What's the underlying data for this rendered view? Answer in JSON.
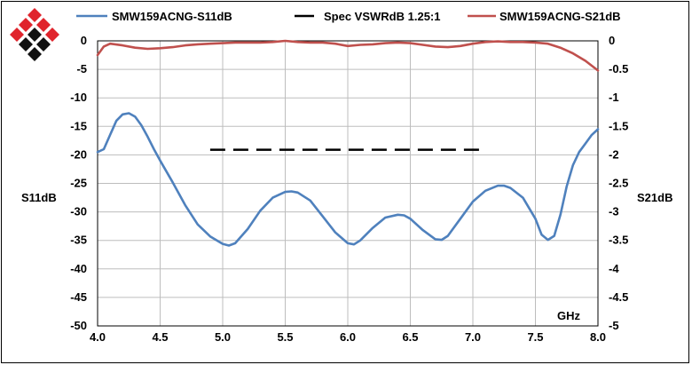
{
  "chart_data": {
    "type": "line",
    "xlabel": "GHz",
    "ylabel_left": "S11dB",
    "ylabel_right": "S21dB",
    "xlim": [
      4.0,
      8.0
    ],
    "ylim_left": [
      -50,
      0
    ],
    "ylim_right": [
      -5,
      0
    ],
    "x_ticks": [
      "4.0",
      "4.5",
      "5.0",
      "5.5",
      "6.0",
      "6.5",
      "7.0",
      "7.5",
      "8.0"
    ],
    "y_left_ticks": [
      "0",
      "-5",
      "-10",
      "-15",
      "-20",
      "-25",
      "-30",
      "-35",
      "-40",
      "-45",
      "-50"
    ],
    "y_right_ticks": [
      "0",
      "-0.5",
      "-1",
      "-1.5",
      "-2",
      "-2.5",
      "-3",
      "-3.5",
      "-4",
      "-4.5",
      "-5"
    ],
    "grid": true,
    "legend_position": "top",
    "series": [
      {
        "name": "SMW159ACNG-S11dB",
        "axis": "left",
        "color": "#4f81bd",
        "style": "solid",
        "points": [
          [
            4.0,
            -19.5
          ],
          [
            4.05,
            -19.0
          ],
          [
            4.1,
            -16.5
          ],
          [
            4.15,
            -14.0
          ],
          [
            4.2,
            -12.9
          ],
          [
            4.25,
            -12.7
          ],
          [
            4.3,
            -13.3
          ],
          [
            4.35,
            -14.8
          ],
          [
            4.4,
            -16.8
          ],
          [
            4.45,
            -19.0
          ],
          [
            4.5,
            -21.0
          ],
          [
            4.6,
            -24.8
          ],
          [
            4.7,
            -28.8
          ],
          [
            4.8,
            -32.2
          ],
          [
            4.9,
            -34.3
          ],
          [
            5.0,
            -35.6
          ],
          [
            5.05,
            -35.9
          ],
          [
            5.1,
            -35.5
          ],
          [
            5.2,
            -33.0
          ],
          [
            5.3,
            -29.8
          ],
          [
            5.4,
            -27.5
          ],
          [
            5.5,
            -26.5
          ],
          [
            5.55,
            -26.4
          ],
          [
            5.6,
            -26.6
          ],
          [
            5.7,
            -28.0
          ],
          [
            5.8,
            -30.8
          ],
          [
            5.9,
            -33.6
          ],
          [
            6.0,
            -35.5
          ],
          [
            6.05,
            -35.7
          ],
          [
            6.1,
            -35.0
          ],
          [
            6.2,
            -32.8
          ],
          [
            6.3,
            -31.0
          ],
          [
            6.4,
            -30.5
          ],
          [
            6.45,
            -30.6
          ],
          [
            6.5,
            -31.2
          ],
          [
            6.6,
            -33.2
          ],
          [
            6.7,
            -34.8
          ],
          [
            6.75,
            -34.9
          ],
          [
            6.8,
            -34.2
          ],
          [
            6.9,
            -31.2
          ],
          [
            7.0,
            -28.2
          ],
          [
            7.1,
            -26.3
          ],
          [
            7.2,
            -25.4
          ],
          [
            7.25,
            -25.4
          ],
          [
            7.3,
            -25.8
          ],
          [
            7.4,
            -27.5
          ],
          [
            7.5,
            -31.2
          ],
          [
            7.55,
            -34.0
          ],
          [
            7.6,
            -34.9
          ],
          [
            7.65,
            -34.2
          ],
          [
            7.7,
            -30.5
          ],
          [
            7.75,
            -25.5
          ],
          [
            7.8,
            -21.8
          ],
          [
            7.85,
            -19.5
          ],
          [
            7.9,
            -18.0
          ],
          [
            7.95,
            -16.5
          ],
          [
            8.0,
            -15.5
          ]
        ]
      },
      {
        "name": "Spec VSWRdB 1.25:1",
        "axis": "left",
        "color": "#000000",
        "style": "dashed",
        "points": [
          [
            4.9,
            -19.1
          ],
          [
            7.05,
            -19.1
          ]
        ]
      },
      {
        "name": "SMW159ACNG-S21dB",
        "axis": "right",
        "color": "#c0504d",
        "style": "solid",
        "points": [
          [
            4.0,
            -0.25
          ],
          [
            4.05,
            -0.1
          ],
          [
            4.1,
            -0.05
          ],
          [
            4.2,
            -0.08
          ],
          [
            4.3,
            -0.12
          ],
          [
            4.4,
            -0.14
          ],
          [
            4.5,
            -0.13
          ],
          [
            4.6,
            -0.11
          ],
          [
            4.7,
            -0.08
          ],
          [
            4.8,
            -0.06
          ],
          [
            4.9,
            -0.05
          ],
          [
            5.0,
            -0.04
          ],
          [
            5.1,
            -0.03
          ],
          [
            5.2,
            -0.03
          ],
          [
            5.3,
            -0.03
          ],
          [
            5.4,
            -0.02
          ],
          [
            5.5,
            0.0
          ],
          [
            5.6,
            -0.02
          ],
          [
            5.7,
            -0.03
          ],
          [
            5.8,
            -0.03
          ],
          [
            5.9,
            -0.05
          ],
          [
            6.0,
            -0.09
          ],
          [
            6.1,
            -0.07
          ],
          [
            6.2,
            -0.06
          ],
          [
            6.3,
            -0.04
          ],
          [
            6.4,
            -0.03
          ],
          [
            6.5,
            -0.04
          ],
          [
            6.6,
            -0.07
          ],
          [
            6.7,
            -0.1
          ],
          [
            6.8,
            -0.11
          ],
          [
            6.9,
            -0.09
          ],
          [
            7.0,
            -0.05
          ],
          [
            7.1,
            -0.02
          ],
          [
            7.2,
            -0.01
          ],
          [
            7.3,
            -0.02
          ],
          [
            7.4,
            -0.02
          ],
          [
            7.5,
            -0.03
          ],
          [
            7.6,
            -0.05
          ],
          [
            7.7,
            -0.12
          ],
          [
            7.8,
            -0.22
          ],
          [
            7.9,
            -0.35
          ],
          [
            8.0,
            -0.52
          ]
        ]
      }
    ]
  },
  "logo": {
    "colors": [
      "#e0242c",
      "#111111"
    ]
  }
}
